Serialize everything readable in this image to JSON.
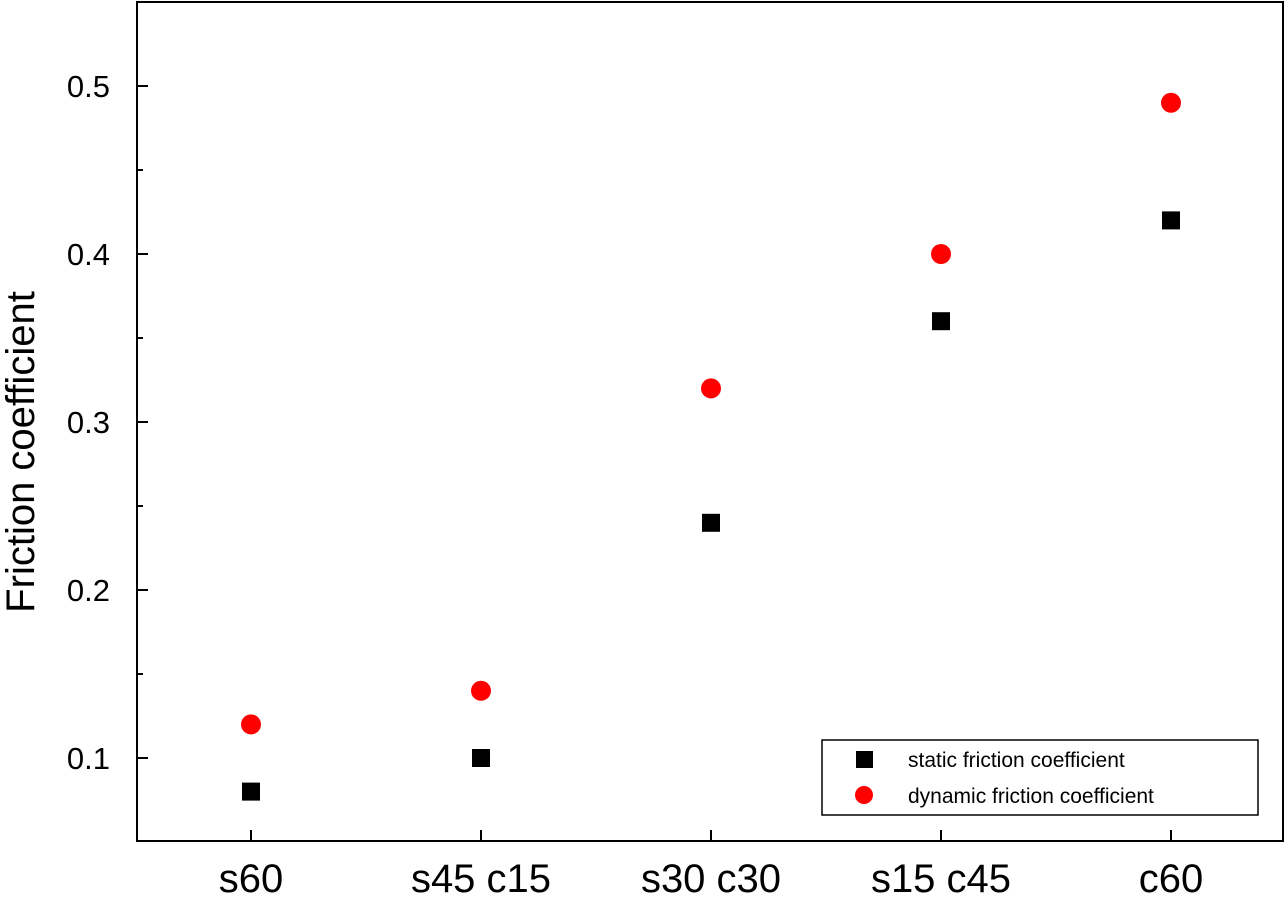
{
  "chart_data": {
    "type": "scatter",
    "categories": [
      "s60",
      "s45 c15",
      "s30 c30",
      "s15 c45",
      "c60"
    ],
    "series": [
      {
        "name": "static friction coefficient",
        "marker": "square",
        "color": "#000000",
        "values": [
          0.08,
          0.1,
          0.24,
          0.36,
          0.42
        ]
      },
      {
        "name": "dynamic friction coefficient",
        "marker": "circle",
        "color": "#ff0000",
        "values": [
          0.12,
          0.14,
          0.32,
          0.4,
          0.49
        ]
      }
    ],
    "title": "",
    "xlabel": "",
    "ylabel": "Friction coefficient",
    "ylim": [
      0.05,
      0.55
    ],
    "yticks": [
      0.1,
      0.2,
      0.3,
      0.4,
      0.5
    ],
    "ytick_labels": [
      "0.1",
      "0.2",
      "0.3",
      "0.4",
      "0.5"
    ],
    "grid": false,
    "legend_position": "bottom-right"
  }
}
